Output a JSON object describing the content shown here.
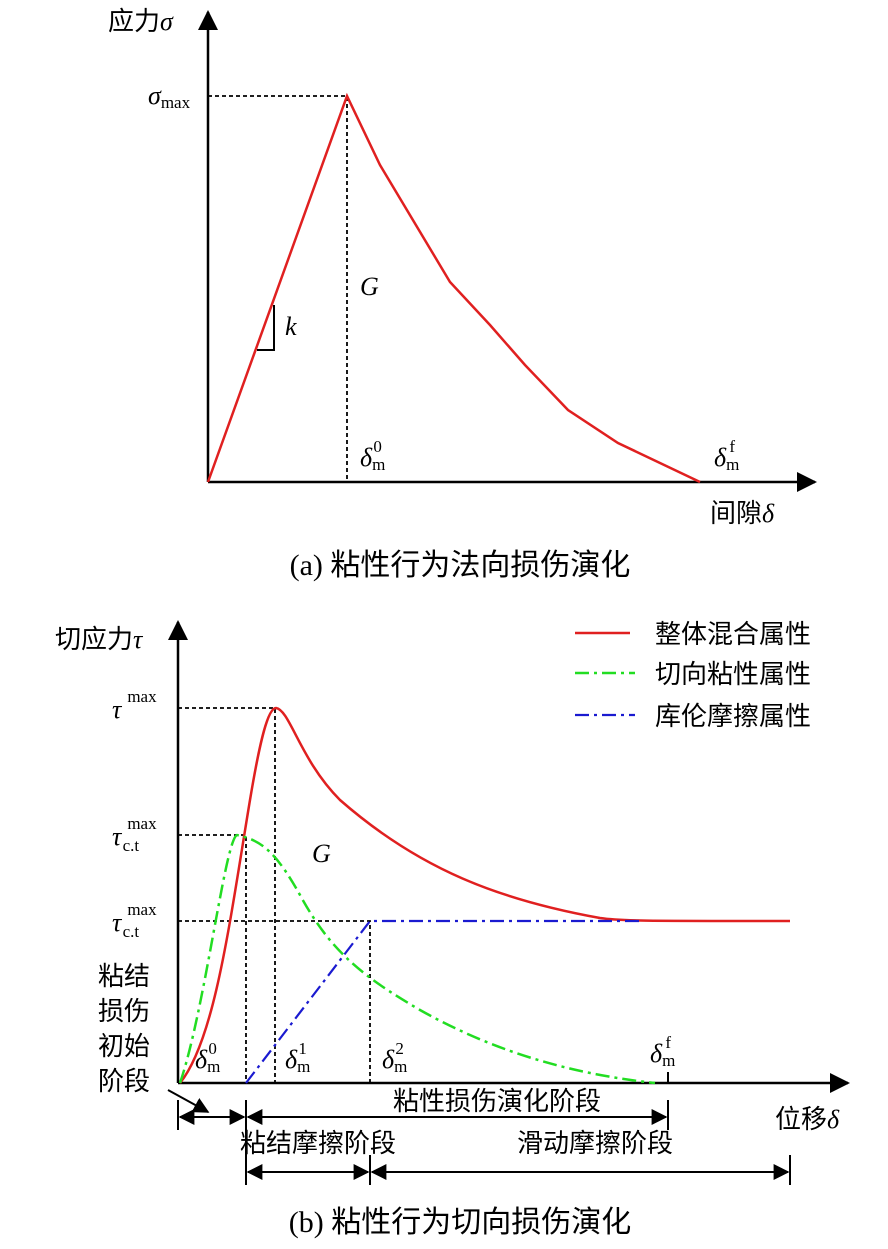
{
  "normal": {
    "y_label": {
      "text": "应力",
      "symbol": "σ"
    },
    "peak_label": {
      "symbol": "σ",
      "sub": "max"
    },
    "area_label": "G",
    "slope_label": "k",
    "delta_0": {
      "symbol": "δ",
      "sub": "m",
      "sup": "0"
    },
    "delta_f": {
      "symbol": "δ",
      "sub": "m",
      "sup": "f"
    },
    "x_label": {
      "text": "间隙",
      "symbol": "δ"
    },
    "caption": "(a)  粘性行为法向损伤演化"
  },
  "shear": {
    "y_label": {
      "text": "切应力",
      "symbol": "τ"
    },
    "legend": [
      "整体混合属性",
      "切向粘性属性",
      "库伦摩擦属性"
    ],
    "tau_max": {
      "symbol": "τ",
      "sup": "max"
    },
    "tau_ct_1": {
      "symbol": "τ",
      "sup": "max",
      "sub": "c.t"
    },
    "tau_ct_2": {
      "symbol": "τ",
      "sup": "max",
      "sub": "c.t"
    },
    "area_label": "G",
    "initial_stage": [
      "粘结",
      "损伤",
      "初始",
      "阶段"
    ],
    "delta_0": {
      "symbol": "δ",
      "sub": "m",
      "sup": "0"
    },
    "delta_1": {
      "symbol": "δ",
      "sub": "m",
      "sup": "1"
    },
    "delta_2": {
      "symbol": "δ",
      "sub": "m",
      "sup": "2"
    },
    "delta_f": {
      "symbol": "δ",
      "sub": "m",
      "sup": "f"
    },
    "damage_stage": "粘性损伤演化阶段",
    "x_label": {
      "text": "位移",
      "symbol": "δ"
    },
    "bond_friction_stage": "粘结摩擦阶段",
    "slide_friction_stage": "滑动摩擦阶段",
    "caption": "(b)  粘性行为切向损伤演化"
  }
}
